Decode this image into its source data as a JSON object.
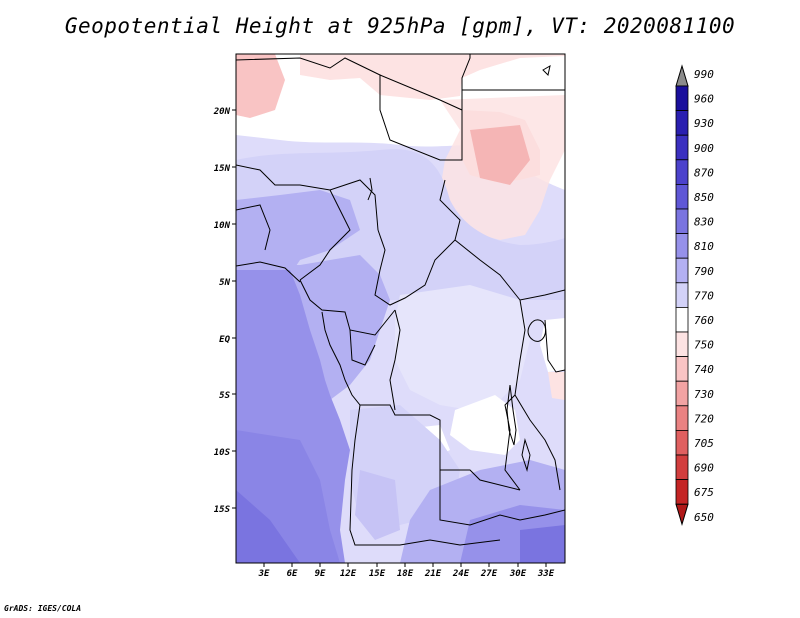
{
  "title": "Geopotential Height at 925hPa [gpm], VT: 2020081100",
  "footer": "GrADS: IGES/COLA",
  "map": {
    "lat_labels": [
      "20N",
      "15N",
      "10N",
      "5N",
      "EQ",
      "5S",
      "10S",
      "15S"
    ],
    "lon_labels": [
      "3E",
      "6E",
      "9E",
      "12E",
      "15E",
      "18E",
      "21E",
      "24E",
      "27E",
      "30E",
      "33E"
    ]
  },
  "colorbar": {
    "levels": [
      "990",
      "960",
      "930",
      "900",
      "870",
      "850",
      "830",
      "810",
      "790",
      "770",
      "760",
      "750",
      "740",
      "730",
      "720",
      "705",
      "690",
      "675",
      "650"
    ],
    "colors": [
      "#8c8c8c",
      "#1a0f9c",
      "#2a1fb0",
      "#3b30c0",
      "#4c42cc",
      "#5f57d6",
      "#7a74e0",
      "#9691ea",
      "#b3b0f2",
      "#d3d2f8",
      "#ffffff",
      "#fde3e3",
      "#f9c4c4",
      "#f2a3a3",
      "#ea8282",
      "#e06060",
      "#d23e3e",
      "#c42424",
      "#b01818"
    ]
  }
}
